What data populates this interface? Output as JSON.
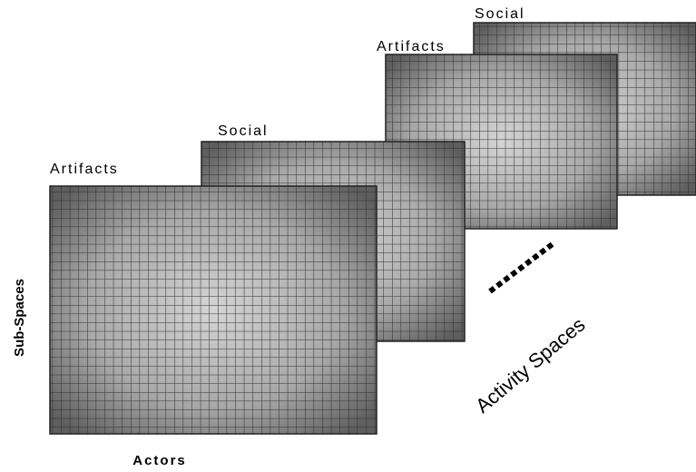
{
  "planes": [
    {
      "label": "Social"
    },
    {
      "label": "Artifacts"
    },
    {
      "label": "Social"
    },
    {
      "label": "Artifacts"
    }
  ],
  "axes": {
    "vertical": "Sub-Spaces",
    "horizontal": "Actors"
  },
  "depth_label": "Activity Spaces"
}
